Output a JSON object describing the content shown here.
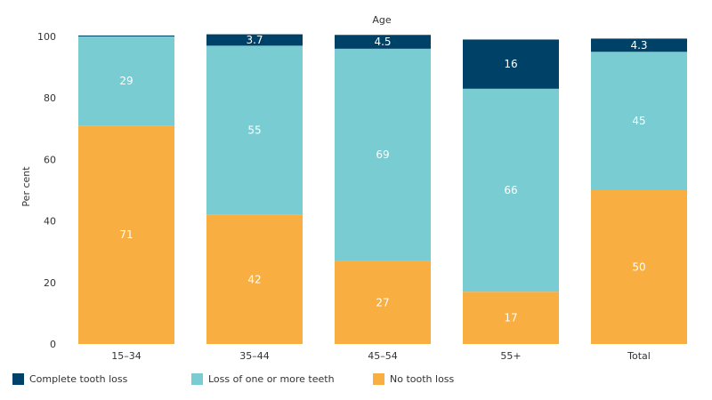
{
  "chart_data": {
    "type": "bar",
    "stacked": true,
    "title": "Age",
    "ylabel": "Per cent",
    "xlabel": "",
    "ylim": [
      0,
      100
    ],
    "yticks": [
      0,
      20,
      40,
      60,
      80,
      100
    ],
    "categories": [
      "15–34",
      "35–44",
      "45–54",
      "55+",
      "Total"
    ],
    "series": [
      {
        "name": "No tooth loss",
        "color": "#f9ae42",
        "values": [
          71,
          42,
          27,
          17,
          50
        ],
        "labels": [
          "71",
          "42",
          "27",
          "17",
          "50"
        ]
      },
      {
        "name": "Loss of one or more teeth",
        "color": "#79ccd2",
        "values": [
          29,
          55,
          69,
          66,
          45
        ],
        "labels": [
          "29",
          "55",
          "69",
          "66",
          "45"
        ]
      },
      {
        "name": "Complete tooth loss",
        "color": "#004267",
        "values": [
          0.3,
          3.7,
          4.5,
          16,
          4.3
        ],
        "labels": [
          "",
          "3.7",
          "4.5",
          "16",
          "4.3"
        ]
      }
    ],
    "legend": {
      "position": "bottom-left",
      "items": [
        {
          "label": "Complete tooth loss",
          "color": "#004267"
        },
        {
          "label": "Loss of one or more teeth",
          "color": "#79ccd2"
        },
        {
          "label": "No tooth loss",
          "color": "#f9ae42"
        }
      ]
    },
    "grid": false
  }
}
